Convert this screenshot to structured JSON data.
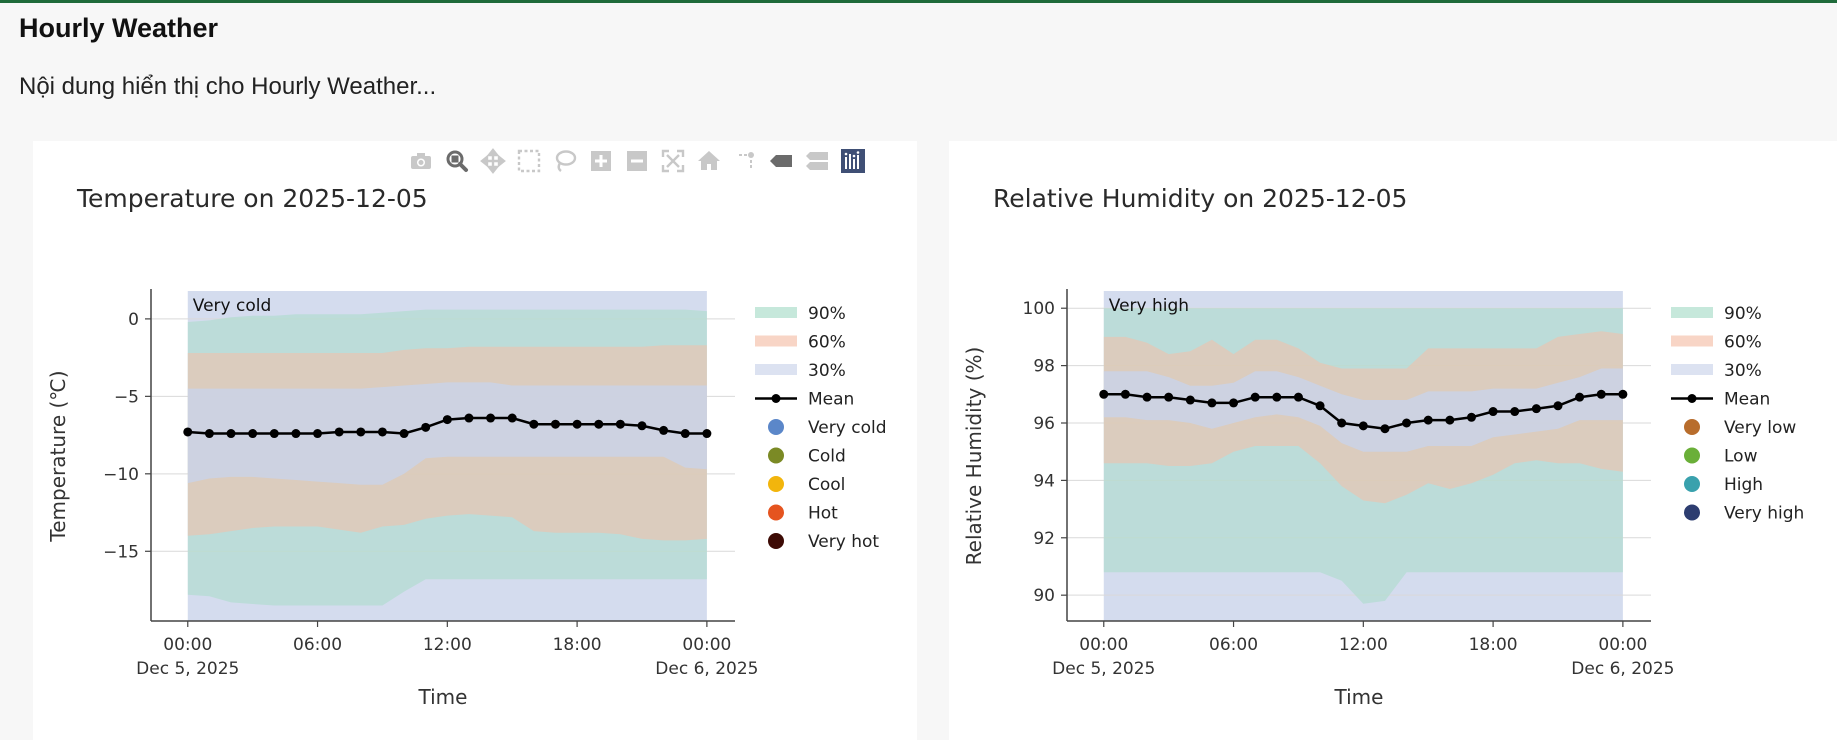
{
  "page": {
    "title": "Hourly Weather",
    "description": "Nội dung hiển thị cho Hourly Weather..."
  },
  "modebar": {
    "buttons": [
      {
        "name": "camera-icon",
        "label": "Download plot as a png"
      },
      {
        "name": "zoom-icon",
        "label": "Zoom",
        "active": true
      },
      {
        "name": "pan-icon",
        "label": "Pan"
      },
      {
        "name": "box-select-icon",
        "label": "Box Select"
      },
      {
        "name": "lasso-select-icon",
        "label": "Lasso Select"
      },
      {
        "name": "zoom-in-icon",
        "label": "Zoom in"
      },
      {
        "name": "zoom-out-icon",
        "label": "Zoom out"
      },
      {
        "name": "autoscale-icon",
        "label": "Autoscale"
      },
      {
        "name": "reset-axes-icon",
        "label": "Reset axes"
      },
      {
        "name": "spike-lines-icon",
        "label": "Toggle Spike Lines"
      },
      {
        "name": "hover-closest-icon",
        "label": "Show closest data on hover"
      },
      {
        "name": "hover-compare-icon",
        "label": "Compare data on hover"
      },
      {
        "name": "plotly-logo-icon",
        "label": "Produced with Plotly"
      }
    ]
  },
  "colors": {
    "band90": "#a8dcc8",
    "band60": "#f4bfa8",
    "band30": "#c9d3ea",
    "mean": "#000000",
    "very_cold": "#5b87c9",
    "cold": "#7b8a25",
    "cool": "#f2b50c",
    "hot": "#e5541f",
    "very_hot": "#3d0b05",
    "very_low": "#b86d2c",
    "low": "#6aaf38",
    "high": "#39a1ad",
    "very_high": "#2d3d70"
  },
  "chart_data": [
    {
      "type": "area",
      "title": "Temperature on 2025-12-05",
      "xlabel": "Time",
      "ylabel": "Temperature (℃)",
      "x_ticks": [
        "00:00",
        "06:00",
        "12:00",
        "18:00",
        "00:00"
      ],
      "x_tick_dates": [
        "Dec 5, 2025",
        "",
        "",
        "",
        "Dec 6, 2025"
      ],
      "x_range_hours": [
        -1.7,
        25.3
      ],
      "y_ticks": [
        0,
        -5,
        -10,
        -15
      ],
      "y_tick_labels": [
        "0",
        "−5",
        "−10",
        "−15"
      ],
      "ylim": [
        -19.5,
        1.8
      ],
      "category_label": "Very cold",
      "x_hours": [
        0,
        1,
        2,
        3,
        4,
        5,
        6,
        7,
        8,
        9,
        10,
        11,
        12,
        13,
        14,
        15,
        16,
        17,
        18,
        19,
        20,
        21,
        22,
        23,
        24
      ],
      "mean": [
        -7.3,
        -7.4,
        -7.4,
        -7.4,
        -7.4,
        -7.4,
        -7.4,
        -7.3,
        -7.3,
        -7.3,
        -7.4,
        -7.0,
        -6.5,
        -6.4,
        -6.4,
        -6.4,
        -6.8,
        -6.8,
        -6.8,
        -6.8,
        -6.8,
        -6.9,
        -7.2,
        -7.4,
        -7.4
      ],
      "bands": [
        {
          "name": "90%",
          "upper": [
            -0.2,
            -0.1,
            0.1,
            0.2,
            0.2,
            0.3,
            0.3,
            0.3,
            0.3,
            0.4,
            0.5,
            0.6,
            0.6,
            0.6,
            0.6,
            0.6,
            0.6,
            0.6,
            0.6,
            0.6,
            0.6,
            0.6,
            0.6,
            0.6,
            0.5
          ],
          "lower": [
            -17.8,
            -17.9,
            -18.3,
            -18.4,
            -18.5,
            -18.5,
            -18.5,
            -18.5,
            -18.5,
            -18.5,
            -17.6,
            -16.8,
            -16.8,
            -16.8,
            -16.8,
            -16.8,
            -16.8,
            -16.8,
            -16.8,
            -16.8,
            -16.8,
            -16.8,
            -16.8,
            -16.8,
            -16.8
          ]
        },
        {
          "name": "60%",
          "upper": [
            -2.2,
            -2.2,
            -2.2,
            -2.2,
            -2.2,
            -2.2,
            -2.2,
            -2.2,
            -2.2,
            -2.2,
            -2.0,
            -1.9,
            -1.9,
            -1.8,
            -1.8,
            -1.8,
            -1.8,
            -1.8,
            -1.8,
            -1.8,
            -1.8,
            -1.8,
            -1.7,
            -1.7,
            -1.7
          ],
          "lower": [
            -14.0,
            -13.9,
            -13.7,
            -13.5,
            -13.4,
            -13.4,
            -13.4,
            -13.6,
            -13.8,
            -13.4,
            -13.3,
            -12.9,
            -12.7,
            -12.6,
            -12.7,
            -12.8,
            -13.7,
            -13.8,
            -13.8,
            -13.8,
            -13.9,
            -14.2,
            -14.3,
            -14.3,
            -14.2
          ]
        },
        {
          "name": "30%",
          "upper": [
            -4.5,
            -4.5,
            -4.5,
            -4.5,
            -4.5,
            -4.5,
            -4.5,
            -4.5,
            -4.5,
            -4.4,
            -4.3,
            -4.2,
            -4.1,
            -4.1,
            -4.1,
            -4.3,
            -4.3,
            -4.3,
            -4.3,
            -4.3,
            -4.3,
            -4.3,
            -4.3,
            -4.3,
            -4.3
          ],
          "lower": [
            -10.6,
            -10.3,
            -10.2,
            -10.2,
            -10.3,
            -10.4,
            -10.5,
            -10.6,
            -10.7,
            -10.7,
            -10.0,
            -9.0,
            -8.9,
            -8.9,
            -8.9,
            -8.9,
            -8.9,
            -8.9,
            -8.9,
            -8.9,
            -8.9,
            -8.9,
            -8.9,
            -9.6,
            -9.7
          ]
        }
      ],
      "legend": [
        "90%",
        "60%",
        "30%",
        "Mean",
        "Very cold",
        "Cold",
        "Cool",
        "Hot",
        "Very hot"
      ],
      "legend_colors": [
        "#a8dcc8",
        "#f4bfa8",
        "#c9d3ea",
        "#000000",
        "#5b87c9",
        "#7b8a25",
        "#f2b50c",
        "#e5541f",
        "#3d0b05"
      ]
    },
    {
      "type": "area",
      "title": "Relative Humidity on 2025-12-05",
      "xlabel": "Time",
      "ylabel": "Relative Humidity (%)",
      "x_ticks": [
        "00:00",
        "06:00",
        "12:00",
        "18:00",
        "00:00"
      ],
      "x_tick_dates": [
        "Dec 5, 2025",
        "",
        "",
        "",
        "Dec 6, 2025"
      ],
      "x_range_hours": [
        -1.7,
        25.3
      ],
      "y_ticks": [
        100,
        98,
        96,
        94,
        92,
        90
      ],
      "y_tick_labels": [
        "100",
        "98",
        "96",
        "94",
        "92",
        "90"
      ],
      "ylim": [
        89.1,
        100.6
      ],
      "category_label": "Very high",
      "x_hours": [
        0,
        1,
        2,
        3,
        4,
        5,
        6,
        7,
        8,
        9,
        10,
        11,
        12,
        13,
        14,
        15,
        16,
        17,
        18,
        19,
        20,
        21,
        22,
        23,
        24
      ],
      "mean": [
        97.0,
        97.0,
        96.9,
        96.9,
        96.8,
        96.7,
        96.7,
        96.9,
        96.9,
        96.9,
        96.6,
        96.0,
        95.9,
        95.8,
        96.0,
        96.1,
        96.1,
        96.2,
        96.4,
        96.4,
        96.5,
        96.6,
        96.9,
        97.0,
        97.0
      ],
      "bands": [
        {
          "name": "90%",
          "upper": [
            100,
            100,
            100,
            100,
            100,
            100,
            100,
            100,
            100,
            100,
            100,
            100,
            100,
            100,
            100,
            100,
            100,
            100,
            100,
            100,
            100,
            100,
            100,
            100,
            100
          ],
          "lower": [
            90.8,
            90.8,
            90.8,
            90.8,
            90.8,
            90.8,
            90.8,
            90.8,
            90.8,
            90.8,
            90.8,
            90.5,
            89.7,
            89.8,
            90.8,
            90.8,
            90.8,
            90.8,
            90.8,
            90.8,
            90.8,
            90.8,
            90.8,
            90.8,
            90.8
          ]
        },
        {
          "name": "60%",
          "upper": [
            99.0,
            99.0,
            98.8,
            98.4,
            98.5,
            98.9,
            98.4,
            98.9,
            98.9,
            98.6,
            98.1,
            97.9,
            97.9,
            97.9,
            97.9,
            98.6,
            98.6,
            98.6,
            98.6,
            98.6,
            98.6,
            99.0,
            99.1,
            99.2,
            99.1
          ],
          "lower": [
            94.6,
            94.6,
            94.6,
            94.5,
            94.5,
            94.6,
            95.0,
            95.2,
            95.2,
            95.2,
            94.6,
            93.8,
            93.3,
            93.2,
            93.5,
            93.9,
            93.7,
            93.9,
            94.2,
            94.6,
            94.7,
            94.6,
            94.6,
            94.4,
            94.3
          ]
        },
        {
          "name": "30%",
          "upper": [
            97.8,
            97.8,
            97.8,
            97.6,
            97.3,
            97.3,
            97.4,
            97.8,
            97.8,
            97.6,
            97.3,
            97.0,
            96.8,
            96.8,
            96.8,
            97.1,
            97.1,
            97.1,
            97.2,
            97.2,
            97.2,
            97.4,
            97.6,
            97.9,
            97.9
          ],
          "lower": [
            96.2,
            96.2,
            96.1,
            96.1,
            96.0,
            95.8,
            96.0,
            96.2,
            96.3,
            96.2,
            95.9,
            95.3,
            95.0,
            95.0,
            95.0,
            95.2,
            95.2,
            95.2,
            95.5,
            95.6,
            95.7,
            95.8,
            96.1,
            96.1,
            96.1
          ]
        }
      ],
      "legend": [
        "90%",
        "60%",
        "30%",
        "Mean",
        "Very low",
        "Low",
        "High",
        "Very high"
      ],
      "legend_colors": [
        "#a8dcc8",
        "#f4bfa8",
        "#c9d3ea",
        "#000000",
        "#b86d2c",
        "#6aaf38",
        "#39a1ad",
        "#2d3d70"
      ]
    }
  ]
}
